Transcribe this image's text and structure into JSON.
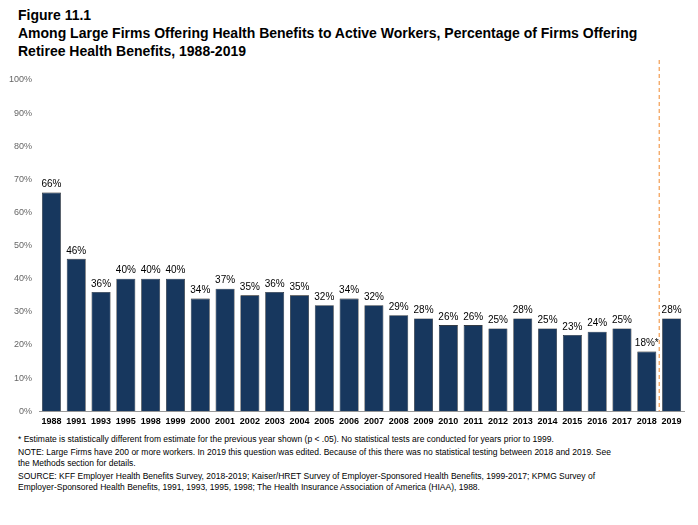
{
  "chart_data": {
    "type": "bar",
    "figure_label": "Figure 11.1",
    "title": "Among Large Firms Offering Health Benefits to Active Workers, Percentage of Firms Offering Retiree Health Benefits, 1988-2019",
    "categories": [
      "1988",
      "1991",
      "1993",
      "1995",
      "1998",
      "1999",
      "2000",
      "2001",
      "2002",
      "2003",
      "2004",
      "2005",
      "2006",
      "2007",
      "2008",
      "2009",
      "2010",
      "2011",
      "2012",
      "2013",
      "2014",
      "2015",
      "2016",
      "2017",
      "2018",
      "2019"
    ],
    "values": [
      66,
      46,
      36,
      40,
      40,
      40,
      34,
      37,
      35,
      36,
      35,
      32,
      34,
      32,
      29,
      28,
      26,
      26,
      25,
      28,
      25,
      23,
      24,
      25,
      18,
      28
    ],
    "value_labels": [
      "66%",
      "46%",
      "36%",
      "40%",
      "40%",
      "40%",
      "34%",
      "37%",
      "35%",
      "36%",
      "35%",
      "32%",
      "34%",
      "32%",
      "29%",
      "28%",
      "26%",
      "26%",
      "25%",
      "28%",
      "25%",
      "23%",
      "24%",
      "25%",
      "18%*",
      "28%"
    ],
    "color": "#17375e",
    "ylim": [
      0,
      100
    ],
    "yticks": [
      {
        "value": 0,
        "label": "0%"
      },
      {
        "value": 10,
        "label": "10%"
      },
      {
        "value": 20,
        "label": "20%"
      },
      {
        "value": 30,
        "label": "30%"
      },
      {
        "value": 40,
        "label": "40%"
      },
      {
        "value": 50,
        "label": "50%"
      },
      {
        "value": 60,
        "label": "60%"
      },
      {
        "value": 70,
        "label": "70%"
      },
      {
        "value": 80,
        "label": "80%"
      },
      {
        "value": 90,
        "label": "90%"
      },
      {
        "value": 100,
        "label": "100%"
      }
    ],
    "grid": false,
    "data_labels": true,
    "notes": [
      "* Estimate is statistically different from estimate for the previous year shown (p < .05). No statistical tests are conducted for years prior to 1999.",
      "NOTE: Large Firms have 200 or more workers.  In 2019 this question was edited.  Because of this there was no statistical testing between 2018 and 2019.  See the Methods section for details.",
      "SOURCE: KFF Employer Health Benefits Survey, 2018-2019; Kaiser/HRET Survey of Employer-Sponsored Health Benefits, 1999-2017; KPMG Survey of Employer-Sponsored Health Benefits, 1991, 1993, 1995, 1998; The Health Insurance Association of America (HIAA), 1988."
    ]
  }
}
